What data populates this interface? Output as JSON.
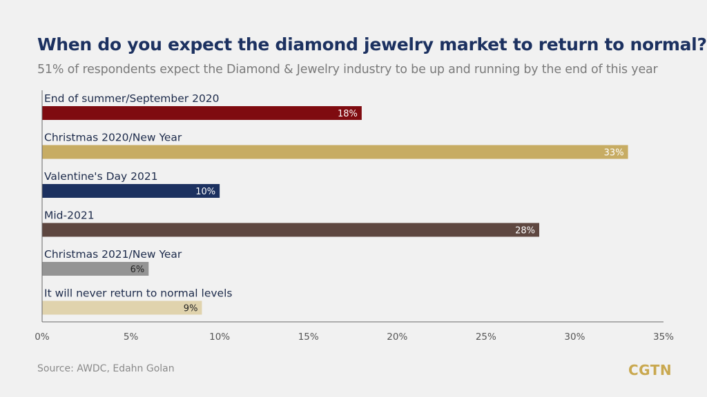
{
  "header": {
    "title": "When do you expect the diamond jewelry market to return to normal?",
    "subtitle": "51% of respondents expect the Diamond & Jewelry industry to be up and running by the end of this year"
  },
  "footer": {
    "source": "Source: AWDC, Edahn Golan",
    "logo": "CGTN"
  },
  "chart_data": {
    "type": "bar",
    "orientation": "horizontal",
    "title": "When do you expect the diamond jewelry market to return to normal?",
    "subtitle": "51% of respondents expect the Diamond & Jewelry industry to be up and running by the end of this year",
    "categories": [
      "End of summer/September 2020",
      "Christmas 2020/New Year",
      "Valentine's Day 2021",
      "Mid-2021",
      "Christmas 2021/New Year",
      "It will never return to normal levels"
    ],
    "values": [
      18,
      33,
      10,
      28,
      6,
      9
    ],
    "value_labels": [
      "18%",
      "33%",
      "10%",
      "28%",
      "6%",
      "9%"
    ],
    "colors": [
      "#7f0b10",
      "#c7ac63",
      "#1c3160",
      "#5e4740",
      "#949494",
      "#e0d3ad"
    ],
    "label_colors": [
      "#ffffff",
      "#ffffff",
      "#ffffff",
      "#ffffff",
      "#222222",
      "#222222"
    ],
    "xlim": [
      0,
      35
    ],
    "xticks": [
      0,
      5,
      10,
      15,
      20,
      25,
      30,
      35
    ],
    "xtick_labels": [
      "0%",
      "5%",
      "10%",
      "15%",
      "20%",
      "25%",
      "30%",
      "35%"
    ],
    "grid": false,
    "legend": "none"
  }
}
